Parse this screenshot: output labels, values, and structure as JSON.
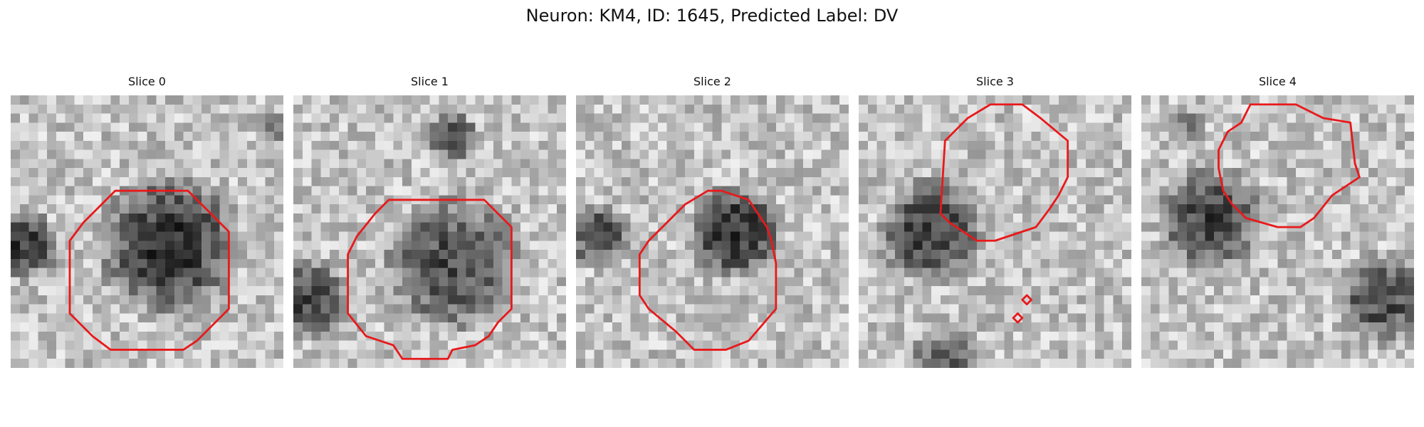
{
  "figure": {
    "title": "Neuron: KM4, ID: 1645, Predicted Label: DV",
    "contour_color": "#e8191b",
    "grid_size": 30,
    "panels": [
      {
        "title": "Slice 0",
        "dark_blobs": [
          [
            17,
            16,
            8.6,
            0.95
          ],
          [
            1,
            16,
            4.2,
            0.9
          ],
          [
            29,
            3,
            2.0,
            0.6
          ]
        ],
        "contours": [
          [
            [
              11.5,
              10.5
            ],
            [
              19.5,
              10.5
            ],
            [
              24,
              15
            ],
            [
              24,
              23.5
            ],
            [
              20.5,
              27
            ],
            [
              19,
              28
            ],
            [
              11,
              28
            ],
            [
              9,
              26.5
            ],
            [
              6.5,
              24
            ],
            [
              6.5,
              16
            ],
            [
              8,
              14
            ],
            [
              10,
              12
            ]
          ]
        ]
      },
      {
        "title": "Slice 1",
        "dark_blobs": [
          [
            17,
            18,
            8.2,
            0.8
          ],
          [
            17,
            4,
            3.0,
            0.9
          ],
          [
            1,
            22,
            5.0,
            0.85
          ]
        ],
        "contours": [
          [
            [
              10.5,
              11.5
            ],
            [
              21,
              11.5
            ],
            [
              24,
              14.5
            ],
            [
              24,
              23.5
            ],
            [
              22.5,
              25
            ],
            [
              21.5,
              26.5
            ],
            [
              20,
              27.5
            ],
            [
              17.5,
              28
            ],
            [
              17,
              29
            ],
            [
              12,
              29
            ],
            [
              11,
              27.5
            ],
            [
              8,
              26.5
            ],
            [
              6,
              24
            ],
            [
              6,
              17.5
            ],
            [
              7,
              15.5
            ],
            [
              9,
              13
            ]
          ]
        ]
      },
      {
        "title": "Slice 2",
        "dark_blobs": [
          [
            17,
            14.5,
            5.7,
            1.0
          ],
          [
            2,
            15,
            4.0,
            0.8
          ]
        ],
        "contours": [
          [
            [
              14.5,
              10.5
            ],
            [
              16,
              10.5
            ],
            [
              19,
              11.5
            ],
            [
              21,
              14.5
            ],
            [
              21.5,
              16
            ],
            [
              22,
              18.5
            ],
            [
              22,
              23.5
            ],
            [
              19,
              27
            ],
            [
              16.5,
              28
            ],
            [
              13,
              28
            ],
            [
              11,
              26
            ],
            [
              8,
              23.5
            ],
            [
              7,
              22
            ],
            [
              7,
              17.5
            ],
            [
              8,
              16
            ],
            [
              10,
              14
            ],
            [
              12,
              12
            ]
          ]
        ]
      },
      {
        "title": "Slice 3",
        "dark_blobs": [
          [
            7.5,
            14.5,
            6.3,
            0.9
          ],
          [
            9,
            29,
            4.5,
            0.6
          ]
        ],
        "contours": [
          [
            [
              14.5,
              1
            ],
            [
              18,
              1
            ],
            [
              20,
              2.5
            ],
            [
              23,
              5
            ],
            [
              23,
              9
            ],
            [
              22,
              11
            ],
            [
              21,
              12.5
            ],
            [
              19.5,
              14.5
            ],
            [
              18,
              15
            ],
            [
              15,
              16
            ],
            [
              13,
              16
            ],
            [
              10,
              14
            ],
            [
              9,
              13
            ],
            [
              9.5,
              5
            ],
            [
              12,
              2.5
            ]
          ],
          [
            [
              18.5,
              22
            ],
            [
              19,
              22.5
            ],
            [
              18.5,
              23
            ],
            [
              18,
              22.5
            ]
          ],
          [
            [
              17.5,
              24
            ],
            [
              18,
              24.5
            ],
            [
              17.5,
              25
            ],
            [
              17,
              24.5
            ]
          ]
        ]
      },
      {
        "title": "Slice 4",
        "dark_blobs": [
          [
            7,
            13,
            6.3,
            0.85
          ],
          [
            26,
            22,
            5.5,
            0.8
          ],
          [
            5,
            3,
            2.0,
            0.5
          ]
        ],
        "contours": [
          [
            [
              12,
              1
            ],
            [
              17,
              1
            ],
            [
              20,
              2.5
            ],
            [
              23,
              3
            ],
            [
              23.5,
              7.5
            ],
            [
              24,
              9
            ],
            [
              21,
              11
            ],
            [
              19,
              13.5
            ],
            [
              17.5,
              14.5
            ],
            [
              15,
              14.5
            ],
            [
              11.5,
              13.5
            ],
            [
              10,
              12
            ],
            [
              9,
              10.5
            ],
            [
              8.5,
              8
            ],
            [
              8.5,
              6
            ],
            [
              9.5,
              4
            ],
            [
              11,
              3
            ]
          ]
        ]
      }
    ]
  }
}
